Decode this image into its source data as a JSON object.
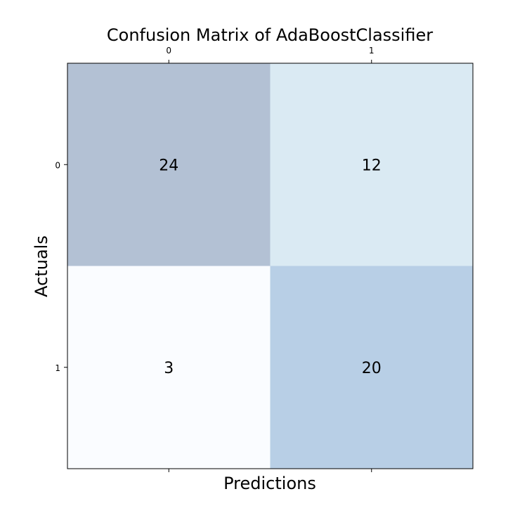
{
  "chart_data": {
    "type": "heatmap",
    "title": "Confusion Matrix of AdaBoostClassifier",
    "xlabel": "Predictions",
    "ylabel": "Actuals",
    "x_categories": [
      "0",
      "1"
    ],
    "y_categories": [
      "0",
      "1"
    ],
    "values": [
      [
        24,
        12
      ],
      [
        3,
        20
      ]
    ],
    "cell_colors": [
      [
        "#b3c1d4",
        "#daeaf3"
      ],
      [
        "#fafcff",
        "#b8cfe6"
      ]
    ],
    "grid": false
  }
}
